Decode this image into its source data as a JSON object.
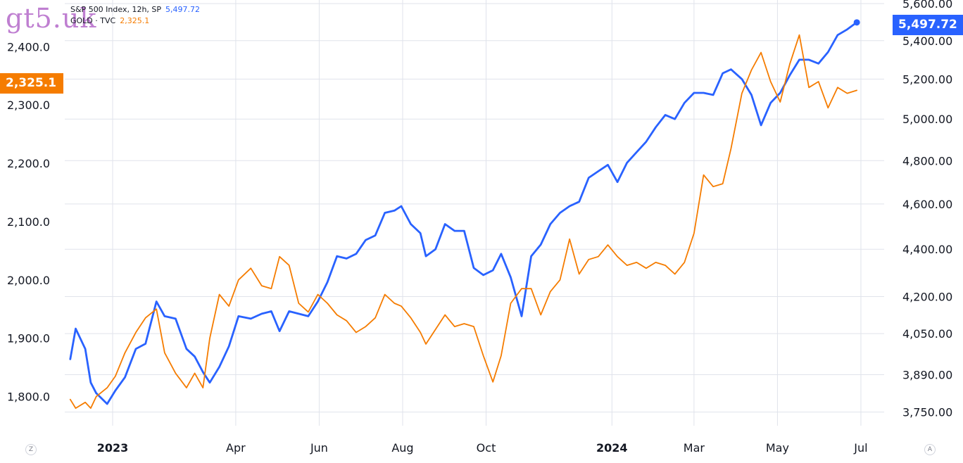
{
  "watermark": "gt5.uk",
  "legend": {
    "series1_label": "S&P 500 Index, 12h, SP",
    "series1_value": "5,497.72",
    "series2_label": "GOLD · TVC",
    "series2_value": "2,325.1"
  },
  "badges": {
    "left": "2,325.1",
    "right": "5,497.72"
  },
  "corner_buttons": {
    "left": "Z",
    "right": "A"
  },
  "colors": {
    "sp500": "#2962ff",
    "gold": "#f57c00",
    "grid": "#e0e3eb",
    "text": "#131722"
  },
  "chart_data": {
    "type": "line",
    "title": "",
    "grid": true,
    "legend_position": "top-left",
    "x_ticks": [
      {
        "label": "2023",
        "date": "2023-01-01",
        "bold": true
      },
      {
        "label": "Apr",
        "date": "2023-04-01",
        "bold": false
      },
      {
        "label": "Jun",
        "date": "2023-06-01",
        "bold": false
      },
      {
        "label": "Aug",
        "date": "2023-08-01",
        "bold": false
      },
      {
        "label": "Oct",
        "date": "2023-10-01",
        "bold": false
      },
      {
        "label": "2024",
        "date": "2024-01-01",
        "bold": true
      },
      {
        "label": "Mar",
        "date": "2024-03-01",
        "bold": false
      },
      {
        "label": "May",
        "date": "2024-05-01",
        "bold": false
      },
      {
        "label": "Jul",
        "date": "2024-07-01",
        "bold": false
      }
    ],
    "left_axis": {
      "series": "GOLD",
      "range": [
        1750,
        2480
      ],
      "ticks": [
        1800,
        1900,
        2000,
        2100,
        2200,
        2300,
        2400
      ],
      "tick_labels": [
        "1,800.0",
        "1,900.0",
        "2,000.0",
        "2,100.0",
        "2,200.0",
        "2,300.0",
        "2,400.0"
      ]
    },
    "right_axis": {
      "series": "S&P 500",
      "scale": "log",
      "range": [
        3700,
        5620
      ],
      "ticks": [
        3750,
        3890,
        4050,
        4200,
        4400,
        4600,
        4800,
        5000,
        5200,
        5400,
        5600
      ],
      "tick_labels": [
        "3,750.00",
        "3,890.00",
        "4,050.00",
        "4,200.00",
        "4,400.00",
        "4,600.00",
        "4,800.00",
        "5,000.00",
        "5,200.00",
        "5,400.00",
        "5,600.00"
      ]
    },
    "series": [
      {
        "name": "S&P 500 Index, 12h, SP",
        "axis": "right",
        "color": "#2962ff",
        "points": [
          [
            "2022-12-01",
            3950
          ],
          [
            "2022-12-05",
            4070
          ],
          [
            "2022-12-12",
            3990
          ],
          [
            "2022-12-16",
            3860
          ],
          [
            "2022-12-20",
            3820
          ],
          [
            "2022-12-28",
            3780
          ],
          [
            "2023-01-03",
            3830
          ],
          [
            "2023-01-10",
            3880
          ],
          [
            "2023-01-18",
            3990
          ],
          [
            "2023-01-25",
            4010
          ],
          [
            "2023-02-02",
            4180
          ],
          [
            "2023-02-08",
            4120
          ],
          [
            "2023-02-16",
            4110
          ],
          [
            "2023-02-24",
            3990
          ],
          [
            "2023-03-02",
            3960
          ],
          [
            "2023-03-08",
            3900
          ],
          [
            "2023-03-13",
            3860
          ],
          [
            "2023-03-20",
            3920
          ],
          [
            "2023-03-27",
            4000
          ],
          [
            "2023-04-03",
            4120
          ],
          [
            "2023-04-12",
            4110
          ],
          [
            "2023-04-20",
            4130
          ],
          [
            "2023-04-27",
            4140
          ],
          [
            "2023-05-03",
            4060
          ],
          [
            "2023-05-10",
            4140
          ],
          [
            "2023-05-17",
            4130
          ],
          [
            "2023-05-24",
            4120
          ],
          [
            "2023-05-31",
            4180
          ],
          [
            "2023-06-07",
            4260
          ],
          [
            "2023-06-14",
            4370
          ],
          [
            "2023-06-21",
            4360
          ],
          [
            "2023-06-28",
            4380
          ],
          [
            "2023-07-05",
            4440
          ],
          [
            "2023-07-12",
            4460
          ],
          [
            "2023-07-19",
            4560
          ],
          [
            "2023-07-26",
            4570
          ],
          [
            "2023-07-31",
            4590
          ],
          [
            "2023-08-07",
            4510
          ],
          [
            "2023-08-14",
            4470
          ],
          [
            "2023-08-18",
            4370
          ],
          [
            "2023-08-25",
            4400
          ],
          [
            "2023-09-01",
            4510
          ],
          [
            "2023-09-08",
            4480
          ],
          [
            "2023-09-15",
            4480
          ],
          [
            "2023-09-22",
            4320
          ],
          [
            "2023-09-29",
            4290
          ],
          [
            "2023-10-06",
            4310
          ],
          [
            "2023-10-12",
            4380
          ],
          [
            "2023-10-19",
            4280
          ],
          [
            "2023-10-27",
            4120
          ],
          [
            "2023-11-03",
            4370
          ],
          [
            "2023-11-10",
            4420
          ],
          [
            "2023-11-17",
            4510
          ],
          [
            "2023-11-24",
            4560
          ],
          [
            "2023-12-01",
            4590
          ],
          [
            "2023-12-08",
            4610
          ],
          [
            "2023-12-15",
            4720
          ],
          [
            "2023-12-22",
            4750
          ],
          [
            "2023-12-29",
            4780
          ],
          [
            "2024-01-05",
            4700
          ],
          [
            "2024-01-12",
            4790
          ],
          [
            "2024-01-19",
            4840
          ],
          [
            "2024-01-26",
            4890
          ],
          [
            "2024-02-02",
            4960
          ],
          [
            "2024-02-09",
            5020
          ],
          [
            "2024-02-16",
            5000
          ],
          [
            "2024-02-23",
            5080
          ],
          [
            "2024-03-01",
            5130
          ],
          [
            "2024-03-08",
            5130
          ],
          [
            "2024-03-15",
            5120
          ],
          [
            "2024-03-22",
            5230
          ],
          [
            "2024-03-28",
            5250
          ],
          [
            "2024-04-05",
            5200
          ],
          [
            "2024-04-12",
            5120
          ],
          [
            "2024-04-19",
            4970
          ],
          [
            "2024-04-26",
            5080
          ],
          [
            "2024-05-03",
            5130
          ],
          [
            "2024-05-10",
            5220
          ],
          [
            "2024-05-17",
            5300
          ],
          [
            "2024-05-24",
            5300
          ],
          [
            "2024-05-31",
            5280
          ],
          [
            "2024-06-07",
            5340
          ],
          [
            "2024-06-14",
            5430
          ],
          [
            "2024-06-21",
            5460
          ],
          [
            "2024-06-28",
            5497.72
          ]
        ]
      },
      {
        "name": "GOLD · TVC",
        "axis": "left",
        "color": "#f57c00",
        "points": [
          [
            "2022-12-01",
            1795
          ],
          [
            "2022-12-05",
            1780
          ],
          [
            "2022-12-12",
            1790
          ],
          [
            "2022-12-16",
            1780
          ],
          [
            "2022-12-20",
            1800
          ],
          [
            "2022-12-28",
            1815
          ],
          [
            "2023-01-03",
            1835
          ],
          [
            "2023-01-10",
            1875
          ],
          [
            "2023-01-18",
            1910
          ],
          [
            "2023-01-25",
            1935
          ],
          [
            "2023-02-02",
            1950
          ],
          [
            "2023-02-08",
            1875
          ],
          [
            "2023-02-16",
            1840
          ],
          [
            "2023-02-24",
            1815
          ],
          [
            "2023-03-02",
            1840
          ],
          [
            "2023-03-08",
            1815
          ],
          [
            "2023-03-13",
            1900
          ],
          [
            "2023-03-20",
            1975
          ],
          [
            "2023-03-27",
            1955
          ],
          [
            "2023-04-03",
            2000
          ],
          [
            "2023-04-12",
            2020
          ],
          [
            "2023-04-20",
            1990
          ],
          [
            "2023-04-27",
            1985
          ],
          [
            "2023-05-03",
            2040
          ],
          [
            "2023-05-10",
            2025
          ],
          [
            "2023-05-17",
            1960
          ],
          [
            "2023-05-24",
            1945
          ],
          [
            "2023-05-31",
            1975
          ],
          [
            "2023-06-07",
            1960
          ],
          [
            "2023-06-14",
            1940
          ],
          [
            "2023-06-21",
            1930
          ],
          [
            "2023-06-28",
            1910
          ],
          [
            "2023-07-05",
            1920
          ],
          [
            "2023-07-12",
            1935
          ],
          [
            "2023-07-19",
            1975
          ],
          [
            "2023-07-26",
            1960
          ],
          [
            "2023-07-31",
            1955
          ],
          [
            "2023-08-07",
            1935
          ],
          [
            "2023-08-14",
            1910
          ],
          [
            "2023-08-18",
            1890
          ],
          [
            "2023-08-25",
            1915
          ],
          [
            "2023-09-01",
            1940
          ],
          [
            "2023-09-08",
            1920
          ],
          [
            "2023-09-15",
            1925
          ],
          [
            "2023-09-22",
            1920
          ],
          [
            "2023-09-29",
            1870
          ],
          [
            "2023-10-06",
            1825
          ],
          [
            "2023-10-12",
            1870
          ],
          [
            "2023-10-19",
            1960
          ],
          [
            "2023-10-27",
            1985
          ],
          [
            "2023-11-03",
            1985
          ],
          [
            "2023-11-10",
            1940
          ],
          [
            "2023-11-17",
            1980
          ],
          [
            "2023-11-24",
            2000
          ],
          [
            "2023-12-01",
            2070
          ],
          [
            "2023-12-08",
            2010
          ],
          [
            "2023-12-15",
            2035
          ],
          [
            "2023-12-22",
            2040
          ],
          [
            "2023-12-29",
            2060
          ],
          [
            "2024-01-05",
            2040
          ],
          [
            "2024-01-12",
            2025
          ],
          [
            "2024-01-19",
            2030
          ],
          [
            "2024-01-26",
            2020
          ],
          [
            "2024-02-02",
            2030
          ],
          [
            "2024-02-09",
            2025
          ],
          [
            "2024-02-16",
            2010
          ],
          [
            "2024-02-23",
            2030
          ],
          [
            "2024-03-01",
            2080
          ],
          [
            "2024-03-08",
            2180
          ],
          [
            "2024-03-15",
            2160
          ],
          [
            "2024-03-22",
            2165
          ],
          [
            "2024-03-28",
            2225
          ],
          [
            "2024-04-05",
            2320
          ],
          [
            "2024-04-12",
            2360
          ],
          [
            "2024-04-19",
            2390
          ],
          [
            "2024-04-26",
            2340
          ],
          [
            "2024-05-03",
            2305
          ],
          [
            "2024-05-10",
            2370
          ],
          [
            "2024-05-17",
            2420
          ],
          [
            "2024-05-24",
            2330
          ],
          [
            "2024-05-31",
            2340
          ],
          [
            "2024-06-07",
            2295
          ],
          [
            "2024-06-14",
            2330
          ],
          [
            "2024-06-21",
            2320
          ],
          [
            "2024-06-28",
            2325.1
          ]
        ]
      }
    ]
  }
}
